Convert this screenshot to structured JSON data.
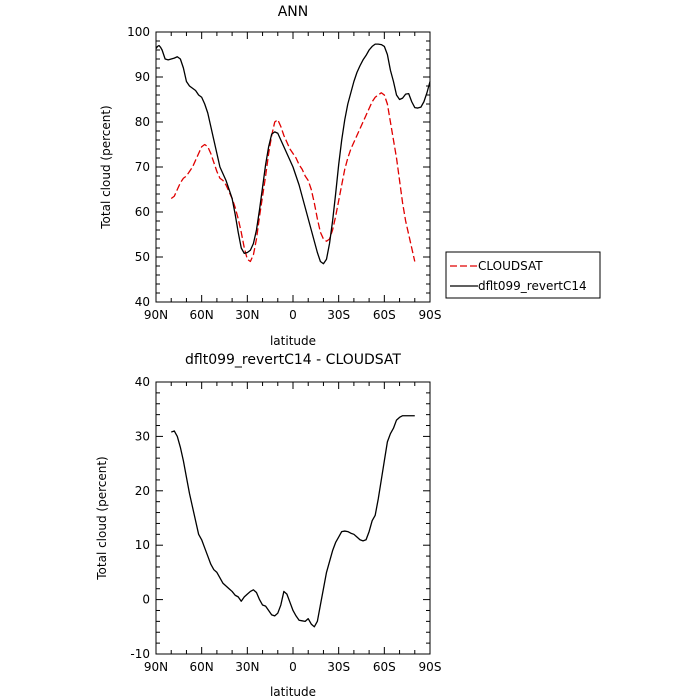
{
  "chart_data": [
    {
      "type": "line",
      "title": "ANN",
      "xlabel": "latitude",
      "ylabel": "Total cloud (percent)",
      "xlim": [
        90,
        -90
      ],
      "ylim": [
        40,
        100
      ],
      "xticks": [
        {
          "value": 90,
          "label": "90N"
        },
        {
          "value": 60,
          "label": "60N"
        },
        {
          "value": 30,
          "label": "30N"
        },
        {
          "value": 0,
          "label": "0"
        },
        {
          "value": -30,
          "label": "30S"
        },
        {
          "value": -60,
          "label": "60S"
        },
        {
          "value": -90,
          "label": "90S"
        }
      ],
      "yticks": [
        40,
        50,
        60,
        70,
        80,
        90,
        100
      ],
      "legend": {
        "placement": "right",
        "entries": [
          {
            "name": "CLOUDSAT",
            "color": "#e00000",
            "dash": true
          },
          {
            "name": "dflt099_revertC14",
            "color": "#000000",
            "dash": false
          }
        ]
      },
      "series": [
        {
          "name": "CLOUDSAT",
          "color": "#e00000",
          "dashed": true,
          "x": [
            80,
            78,
            76,
            74,
            72,
            70,
            68,
            66,
            64,
            62,
            60,
            58,
            56,
            54,
            52,
            50,
            48,
            46,
            44,
            42,
            40,
            38,
            36,
            34,
            32,
            30,
            28,
            26,
            24,
            22,
            20,
            18,
            16,
            14,
            12,
            10,
            8,
            6,
            4,
            2,
            0,
            -2,
            -4,
            -6,
            -8,
            -10,
            -12,
            -14,
            -16,
            -18,
            -20,
            -22,
            -24,
            -26,
            -28,
            -30,
            -32,
            -34,
            -36,
            -38,
            -40,
            -42,
            -44,
            -46,
            -48,
            -50,
            -52,
            -54,
            -56,
            -58,
            -60,
            -62,
            -64,
            -66,
            -68,
            -70,
            -72,
            -74,
            -76,
            -78,
            -80
          ],
          "values": [
            63,
            63.5,
            65,
            66.5,
            67.5,
            68,
            69,
            70,
            71.5,
            73,
            74.5,
            75,
            74.5,
            73,
            71,
            69,
            67.5,
            67,
            66,
            64.5,
            63,
            61,
            58.5,
            55.5,
            52,
            49.5,
            49,
            50.5,
            54,
            59,
            63.5,
            68,
            73,
            77,
            80,
            80.5,
            79,
            77,
            75.5,
            74,
            73,
            72,
            70.5,
            69.5,
            68,
            67,
            65,
            62,
            58.5,
            55.5,
            54,
            53.5,
            54,
            56,
            59,
            62.5,
            66,
            69.5,
            72,
            74,
            75.5,
            77,
            78.5,
            80,
            81.5,
            83,
            84.5,
            85.5,
            86,
            86.5,
            86,
            84,
            80,
            76,
            72,
            67,
            62,
            58,
            55,
            52,
            49
          ]
        },
        {
          "name": "dflt099_revertC14",
          "color": "#000000",
          "dashed": false,
          "x": [
            90,
            89,
            88,
            87,
            86,
            84,
            82,
            80,
            78,
            76,
            74,
            72,
            70,
            68,
            66,
            64,
            62,
            60,
            58,
            56,
            54,
            52,
            50,
            48,
            46,
            44,
            42,
            40,
            38,
            36,
            34,
            32,
            30,
            28,
            26,
            24,
            22,
            20,
            18,
            16,
            14,
            12,
            10,
            8,
            6,
            4,
            2,
            0,
            -2,
            -4,
            -6,
            -8,
            -10,
            -12,
            -14,
            -16,
            -18,
            -20,
            -22,
            -24,
            -26,
            -28,
            -30,
            -32,
            -34,
            -36,
            -38,
            -40,
            -42,
            -44,
            -46,
            -48,
            -50,
            -52,
            -54,
            -56,
            -58,
            -60,
            -62,
            -64,
            -66,
            -68,
            -70,
            -72,
            -74,
            -76,
            -78,
            -80,
            -82,
            -84,
            -86,
            -88,
            -90
          ],
          "values": [
            96.3,
            96.8,
            97,
            96.6,
            96,
            94,
            93.8,
            94,
            94.2,
            94.5,
            94,
            92,
            89,
            88,
            87.5,
            87,
            86,
            85.5,
            84,
            82,
            79,
            76,
            73,
            70,
            68.5,
            67,
            65,
            63,
            59.5,
            55.5,
            52,
            50.8,
            51,
            51.5,
            53,
            56,
            60.5,
            65.5,
            70.5,
            74.5,
            77.3,
            77.8,
            77.5,
            76,
            74.5,
            73,
            71.5,
            70,
            68,
            66,
            63.5,
            61,
            58.5,
            56,
            53.5,
            51,
            49,
            48.5,
            49.5,
            53,
            58,
            64,
            70.5,
            76,
            80.5,
            84,
            86.5,
            89,
            91,
            92.5,
            93.8,
            94.8,
            96,
            96.8,
            97.3,
            97.3,
            97.2,
            96.8,
            95,
            91.5,
            89,
            86,
            85,
            85.3,
            86.2,
            86.3,
            84.5,
            83.2,
            83.1,
            83.3,
            84.5,
            86.5,
            89
          ]
        }
      ]
    },
    {
      "type": "line",
      "title": "dflt099_revertC14 - CLOUDSAT",
      "xlabel": "latitude",
      "ylabel": "Total cloud (percent)",
      "xlim": [
        90,
        -90
      ],
      "ylim": [
        -10,
        40
      ],
      "xticks": [
        {
          "value": 90,
          "label": "90N"
        },
        {
          "value": 60,
          "label": "60N"
        },
        {
          "value": 30,
          "label": "30N"
        },
        {
          "value": 0,
          "label": "0"
        },
        {
          "value": -30,
          "label": "30S"
        },
        {
          "value": -60,
          "label": "60S"
        },
        {
          "value": -90,
          "label": "90S"
        }
      ],
      "yticks": [
        -10,
        0,
        10,
        20,
        30,
        40
      ],
      "series": [
        {
          "name": "",
          "color": "#000000",
          "dashed": false,
          "x": [
            80,
            78,
            76,
            74,
            72,
            70,
            68,
            66,
            64,
            62,
            60,
            58,
            56,
            54,
            52,
            50,
            48,
            46,
            44,
            42,
            40,
            38,
            36,
            34,
            32,
            30,
            28,
            26,
            24,
            22,
            20,
            18,
            16,
            14,
            12,
            10,
            8,
            6,
            4,
            2,
            0,
            -2,
            -4,
            -6,
            -8,
            -10,
            -12,
            -14,
            -16,
            -18,
            -20,
            -22,
            -24,
            -26,
            -28,
            -30,
            -32,
            -34,
            -36,
            -38,
            -40,
            -42,
            -44,
            -46,
            -48,
            -50,
            -52,
            -54,
            -56,
            -58,
            -60,
            -62,
            -64,
            -66,
            -68,
            -70,
            -72,
            -74,
            -76,
            -78,
            -80
          ],
          "values": [
            30.8,
            31,
            30,
            28,
            25.5,
            22.5,
            19.5,
            17,
            14.5,
            12,
            11,
            9.5,
            8,
            6.5,
            5.5,
            5,
            4,
            3,
            2.5,
            2,
            1.5,
            0.8,
            0.5,
            -0.3,
            0.5,
            1,
            1.5,
            1.8,
            1.3,
            0,
            -1,
            -1.2,
            -2,
            -2.8,
            -3,
            -2.5,
            -1,
            1.5,
            1,
            -0.5,
            -2,
            -3,
            -3.8,
            -3.9,
            -4,
            -3.5,
            -4.5,
            -5,
            -4,
            -1,
            2,
            5,
            7,
            9,
            10.5,
            11.5,
            12.5,
            12.6,
            12.5,
            12.2,
            12,
            11.5,
            11,
            10.8,
            11,
            12.5,
            14.5,
            15.5,
            18.5,
            22,
            25.5,
            29,
            30.5,
            31.5,
            33,
            33.5,
            33.8,
            33.8,
            33.8,
            33.8,
            33.8
          ]
        }
      ]
    }
  ]
}
